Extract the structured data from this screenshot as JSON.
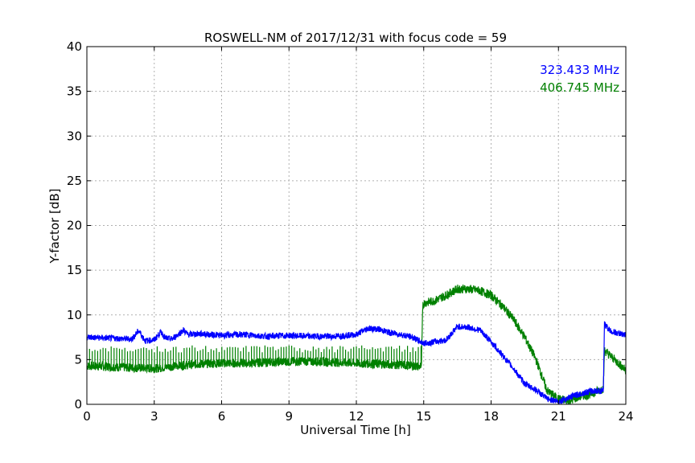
{
  "chart_data": {
    "type": "line",
    "title": "ROSWELL-NM of 2017/12/31 with focus code = 59",
    "xlabel": "Universal Time [h]",
    "ylabel": "Y-factor [dB]",
    "xlim": [
      0,
      24
    ],
    "ylim": [
      0,
      40
    ],
    "xticks": [
      0,
      3,
      6,
      9,
      12,
      15,
      18,
      21,
      24
    ],
    "yticks": [
      0,
      5,
      10,
      15,
      20,
      25,
      30,
      35,
      40
    ],
    "grid": true,
    "legend_position": "top-right",
    "series": [
      {
        "name": "323.433 MHz",
        "color": "#0000ff",
        "x": [
          0,
          1,
          2,
          2.3,
          2.4,
          2.6,
          3,
          3.3,
          3.5,
          3.8,
          4.3,
          4.5,
          5,
          6,
          7,
          8,
          9,
          10,
          11,
          12,
          12.5,
          13,
          13.5,
          14,
          14.5,
          15,
          15.5,
          16,
          16.5,
          17,
          17.5,
          18,
          18.5,
          19,
          19.5,
          20,
          20.5,
          21,
          21.5,
          22,
          22.5,
          23,
          23.05,
          23.3,
          23.7,
          24
        ],
        "y": [
          7.5,
          7.4,
          7.3,
          8.2,
          7.9,
          7.1,
          7.2,
          8.1,
          7.4,
          7.3,
          8.3,
          7.8,
          7.9,
          7.7,
          7.8,
          7.6,
          7.7,
          7.6,
          7.6,
          7.8,
          8.5,
          8.4,
          8.0,
          7.8,
          7.5,
          6.8,
          7.0,
          7.2,
          8.7,
          8.6,
          8.3,
          7.0,
          5.5,
          4.0,
          2.3,
          1.6,
          0.6,
          0.3,
          0.8,
          1.2,
          1.5,
          1.5,
          9.0,
          8.2,
          7.9,
          7.8
        ],
        "noise": 0.35
      },
      {
        "name": "406.745 MHz",
        "color": "#008000",
        "x": [
          0,
          1,
          2,
          3,
          4,
          5,
          6,
          7,
          8,
          9,
          10,
          11,
          12,
          13,
          14,
          14.9,
          14.95,
          15,
          15.5,
          16,
          16.5,
          17,
          17.5,
          18,
          18.5,
          19,
          19.5,
          20,
          20.5,
          21,
          21.5,
          22,
          22.5,
          23,
          23.05,
          23.5,
          24
        ],
        "y": [
          4.3,
          4.2,
          4.1,
          4.0,
          4.3,
          4.5,
          4.6,
          4.6,
          4.7,
          4.8,
          4.8,
          4.7,
          4.6,
          4.5,
          4.4,
          4.2,
          11.0,
          11.3,
          11.6,
          12.2,
          12.9,
          12.9,
          12.7,
          12.2,
          11.0,
          9.5,
          7.5,
          5.0,
          1.5,
          0.6,
          0.4,
          0.9,
          1.2,
          1.8,
          6.0,
          5.0,
          3.8
        ],
        "noise": 0.5,
        "spike_step": 0.12,
        "spike_top": 6.2,
        "spike_range": [
          0,
          14.9
        ]
      }
    ]
  }
}
